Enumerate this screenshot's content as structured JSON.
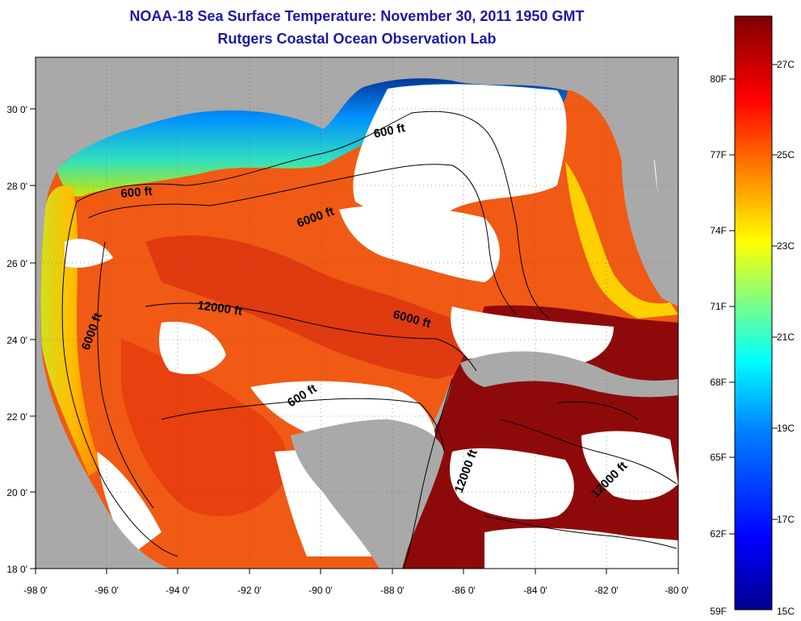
{
  "header": {
    "title": "NOAA-18 Sea Surface Temperature:  November 30, 2011 1950 GMT",
    "subtitle": "Rutgers Coastal Ocean Observation Lab"
  },
  "map": {
    "region": "Gulf of Mexico",
    "lon_range": [
      -98,
      -80
    ],
    "lat_range": [
      18,
      31
    ],
    "longitude_ticks": [
      "-98 0'",
      "-96 0'",
      "-94 0'",
      "-92 0'",
      "-90 0'",
      "-88 0'",
      "-86 0'",
      "-84 0'",
      "-82 0'",
      "-80 0'"
    ],
    "latitude_ticks": [
      "18 0'",
      "20 0'",
      "22 0'",
      "24 0'",
      "26 0'",
      "28 0'",
      "30 0'"
    ],
    "contour_labels": [
      "600 ft",
      "600 ft",
      "6000 ft",
      "12000 ft",
      "6000 ft",
      "6000 ft",
      "600 ft",
      "12000 ft",
      "12000 ft"
    ],
    "land_color": "#a9a9a9",
    "cloud_color": "#ffffff"
  },
  "colorbar": {
    "fahrenheit_labels": [
      "80F",
      "77F",
      "74F",
      "71F",
      "68F",
      "65F",
      "62F",
      "59F"
    ],
    "celsius_labels": [
      "27C",
      "25C",
      "23C",
      "21C",
      "19C",
      "17C",
      "15C"
    ],
    "colormap": [
      "#00008f",
      "#0000ff",
      "#0080ff",
      "#00ffff",
      "#80ff80",
      "#ffff00",
      "#ff8000",
      "#ff0000",
      "#800000"
    ]
  }
}
